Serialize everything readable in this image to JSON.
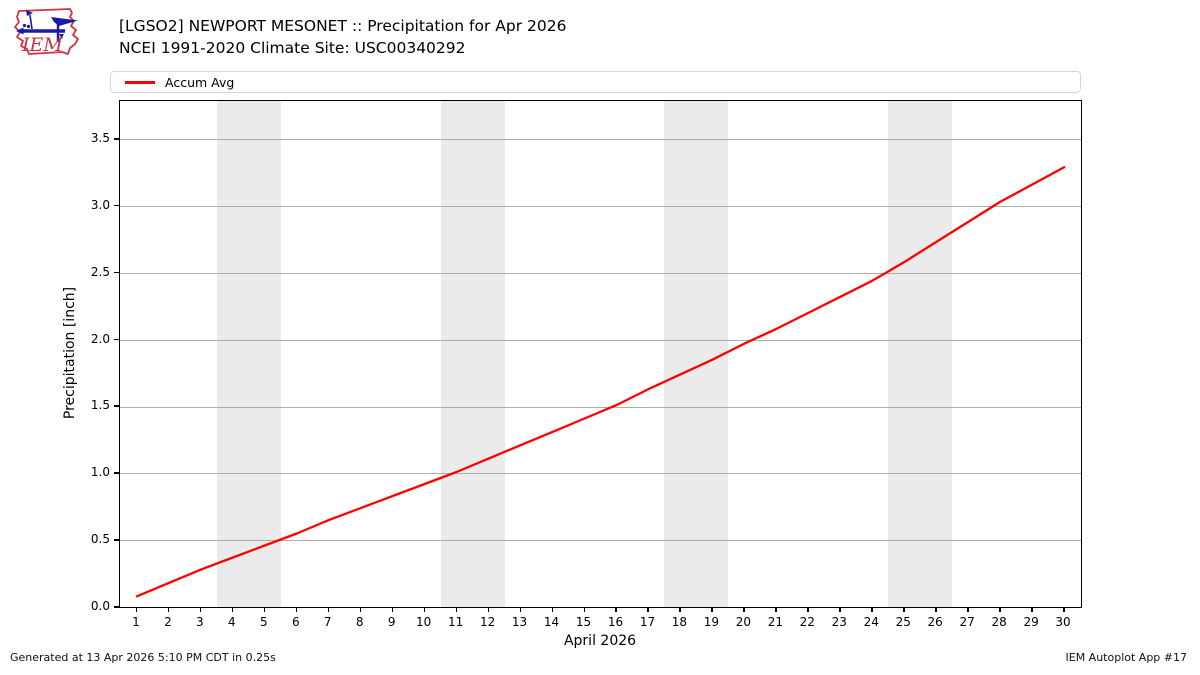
{
  "header": {
    "title": "[LGSO2] NEWPORT MESONET :: Precipitation for Apr 2026",
    "subtitle": "NCEI 1991-2020 Climate Site: USC00340292",
    "logo_text": "IEM"
  },
  "legend": {
    "items": [
      {
        "label": "Accum Avg",
        "color": "#ff0000"
      }
    ]
  },
  "footer": {
    "left": "Generated at 13 Apr 2026 5:10 PM CDT in 0.25s",
    "right": "IEM Autoplot App #17"
  },
  "colors": {
    "line": "#ff0000",
    "weekend_band": "#ebebeb",
    "gridline": "#adadad",
    "axis": "#000000",
    "legend_border": "#d6d6d6",
    "logo_red": "#cc3344",
    "logo_blue": "#1a1aa6"
  },
  "chart_data": {
    "type": "line",
    "title": "[LGSO2] NEWPORT MESONET :: Precipitation for Apr 2026",
    "subtitle": "NCEI 1991-2020 Climate Site: USC00340292",
    "xlabel": "April 2026",
    "ylabel": "Precipitation [inch]",
    "x": [
      1,
      2,
      3,
      4,
      5,
      6,
      7,
      8,
      9,
      10,
      11,
      12,
      13,
      14,
      15,
      16,
      17,
      18,
      19,
      20,
      21,
      22,
      23,
      24,
      25,
      26,
      27,
      28,
      29,
      30
    ],
    "series": [
      {
        "name": "Accum Avg",
        "color": "#ff0000",
        "values": [
          0.08,
          0.18,
          0.28,
          0.37,
          0.46,
          0.55,
          0.65,
          0.74,
          0.83,
          0.92,
          1.01,
          1.11,
          1.21,
          1.31,
          1.41,
          1.51,
          1.63,
          1.74,
          1.85,
          1.97,
          2.08,
          2.2,
          2.32,
          2.44,
          2.58,
          2.73,
          2.88,
          3.03,
          3.16,
          3.29
        ]
      }
    ],
    "xlim": [
      0.47,
      30.53
    ],
    "ylim": [
      0,
      3.785
    ],
    "yticks": [
      0.0,
      0.5,
      1.0,
      1.5,
      2.0,
      2.5,
      3.0,
      3.5
    ],
    "ytick_labels": [
      "0.0",
      "0.5",
      "1.0",
      "1.5",
      "2.0",
      "2.5",
      "3.0",
      "3.5"
    ],
    "xticks": [
      1,
      2,
      3,
      4,
      5,
      6,
      7,
      8,
      9,
      10,
      11,
      12,
      13,
      14,
      15,
      16,
      17,
      18,
      19,
      20,
      21,
      22,
      23,
      24,
      25,
      26,
      27,
      28,
      29,
      30
    ],
    "grid": "horizontal",
    "legend_position": "top",
    "weekend_bands": [
      [
        3.5,
        5.5
      ],
      [
        10.5,
        12.5
      ],
      [
        17.5,
        19.5
      ],
      [
        24.5,
        26.5
      ]
    ]
  }
}
